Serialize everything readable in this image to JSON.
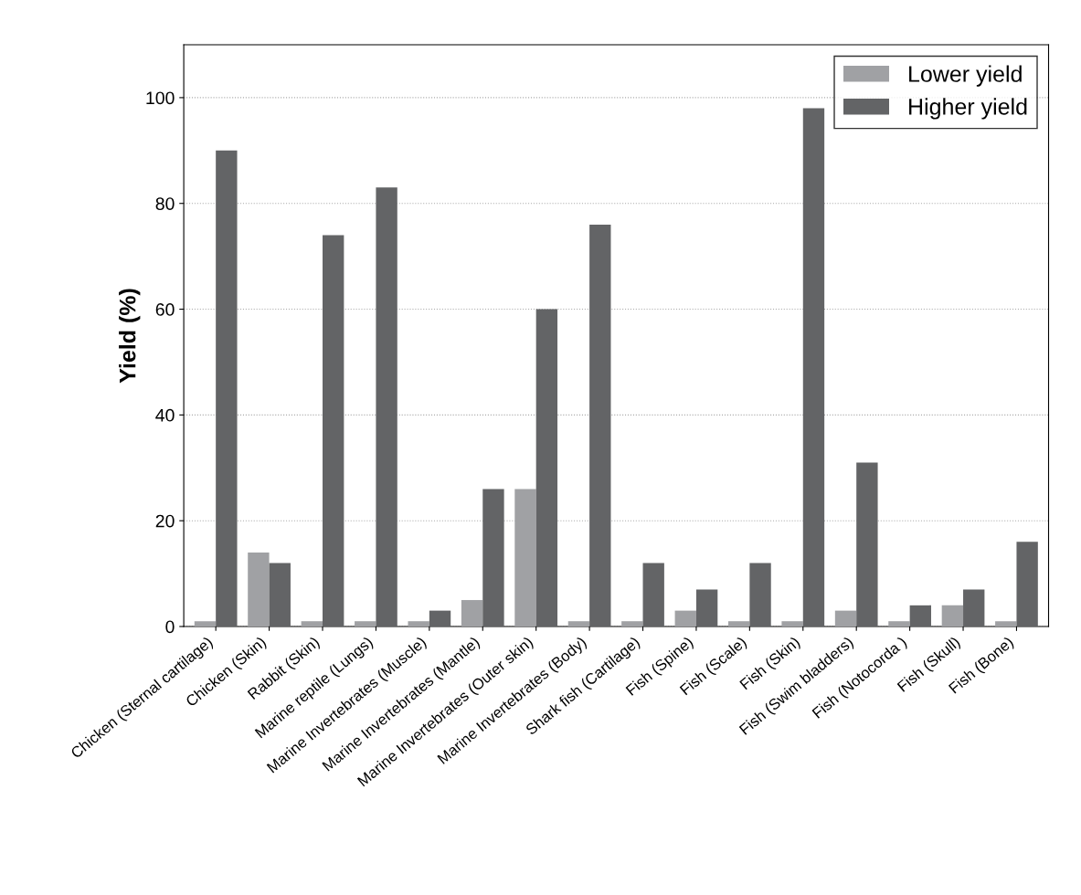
{
  "chart_data": {
    "type": "bar",
    "ylabel": "Yield (%)",
    "categories": [
      "Chicken (Sternal cartilage)",
      "Chicken (Skin)",
      "Rabbit (Skin)",
      "Marine reptile (Lungs)",
      "Marine Invertebrates (Muscle)",
      "Marine Invertebrates (Mantle)",
      "Marine Invertebrates (Outer skin)",
      "Marine Invertebrates (Body)",
      "Shark fish (Cartilage)",
      "Fish (Spine)",
      "Fish (Scale)",
      "Fish (Skin)",
      "Fish (Swim bladders)",
      "Fish (Notocorda )",
      "Fish (Skull)",
      "Fish (Bone)"
    ],
    "series": [
      {
        "name": "Lower yield",
        "color": "#a0a1a4",
        "values": [
          1,
          14,
          1,
          1,
          1,
          5,
          26,
          1,
          1,
          3,
          1,
          1,
          3,
          1,
          4,
          1
        ]
      },
      {
        "name": "Higher yield",
        "color": "#636466",
        "values": [
          90,
          12,
          74,
          83,
          3,
          26,
          60,
          76,
          12,
          7,
          12,
          98,
          31,
          4,
          7,
          16
        ]
      }
    ],
    "ylim": [
      0,
      110
    ],
    "yticks": [
      0,
      20,
      40,
      60,
      80,
      100
    ],
    "grid": "y",
    "legend": "top right"
  }
}
